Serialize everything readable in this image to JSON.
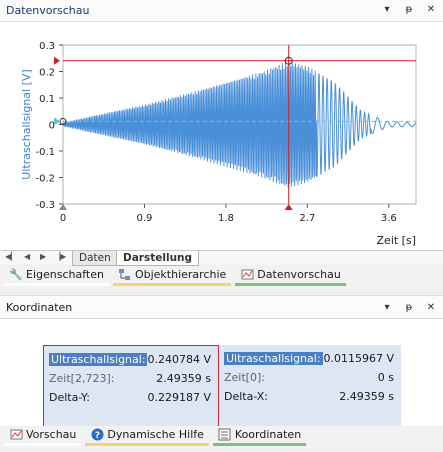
{
  "top_panel": {
    "title": "Datenvorschau",
    "controls": [
      "▾",
      "ᵽ",
      "✕"
    ]
  },
  "bottom_panel": {
    "title": "Koordinaten",
    "controls": [
      "▾",
      "ᵽ",
      "✕"
    ]
  },
  "sheet_tabs": [
    "Daten",
    "Darstellung"
  ],
  "toolbar_top": [
    {
      "label": "Eigenschaften",
      "icon": "wrench-icon"
    },
    {
      "label": "Objekthierarchie",
      "icon": "hierarchy-icon"
    },
    {
      "label": "Datenvorschau",
      "icon": "preview-icon"
    }
  ],
  "toolbar_bottom": [
    {
      "label": "Vorschau",
      "icon": "preview-icon"
    },
    {
      "label": "Dynamische Hilfe",
      "icon": "help-icon"
    },
    {
      "label": "Koordinaten",
      "icon": "coordinates-icon"
    }
  ],
  "coords": {
    "left": [
      {
        "label": "Ultraschallsignal:",
        "value": "0.240784 V"
      },
      {
        "label": "Zeit[2,723]:",
        "value": "2.49359 s"
      },
      {
        "label": "Delta-Y:",
        "value": "0.229187 V"
      }
    ],
    "right": [
      {
        "label": "Ultraschallsignal:",
        "value": "0.0115967 V"
      },
      {
        "label": "Zeit[0]:",
        "value": "0 s"
      },
      {
        "label": "Delta-X:",
        "value": "2.49359 s"
      }
    ]
  },
  "chart_data": {
    "type": "line",
    "ylabel": "Ultraschallsignal [V]",
    "xlabel": "Zeit [s]",
    "xlim": [
      0,
      3.9
    ],
    "ylim": [
      -0.3,
      0.3
    ],
    "xticks": [
      "0",
      "0.9",
      "1.8",
      "2.7",
      "3.6"
    ],
    "yticks": [
      "0.3",
      "0.2",
      "0.1",
      "0",
      "-0.1",
      "-0.2",
      "-0.3"
    ],
    "cursor_x": 2.49359,
    "cursor_y": 0.240784,
    "baseline_y": 0.0115967,
    "series_color": "#4a90d9",
    "cursor_color": "#d11f1f",
    "envelope": [
      {
        "x": 0.0,
        "a": 0.005
      },
      {
        "x": 0.3,
        "a": 0.03
      },
      {
        "x": 0.9,
        "a": 0.075
      },
      {
        "x": 1.4,
        "a": 0.12
      },
      {
        "x": 1.8,
        "a": 0.16
      },
      {
        "x": 2.2,
        "a": 0.2
      },
      {
        "x": 2.49,
        "a": 0.24
      },
      {
        "x": 2.7,
        "a": 0.22
      },
      {
        "x": 3.0,
        "a": 0.16
      },
      {
        "x": 3.3,
        "a": 0.05
      },
      {
        "x": 3.6,
        "a": 0.01
      },
      {
        "x": 3.9,
        "a": 0.008
      }
    ]
  }
}
